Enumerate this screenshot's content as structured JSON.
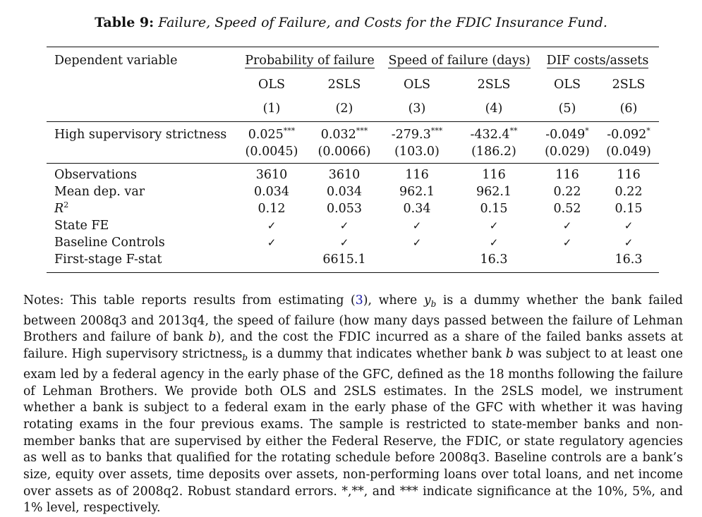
{
  "caption": {
    "label": "Table 9:",
    "text": "Failure, Speed of Failure, and Costs for the FDIC Insurance Fund."
  },
  "table": {
    "dep_var_label": "Dependent variable",
    "groups": [
      "Probability of failure",
      "Speed of failure (days)",
      "DIF costs/assets"
    ],
    "methods": [
      "OLS",
      "2SLS",
      "OLS",
      "2SLS",
      "OLS",
      "2SLS"
    ],
    "col_numbers": [
      "(1)",
      "(2)",
      "(3)",
      "(4)",
      "(5)",
      "(6)"
    ],
    "main_row": {
      "label": "High supervisory strictness",
      "coefs": [
        "0.025",
        "0.032",
        "-279.3",
        "-432.4",
        "-0.049",
        "-0.092"
      ],
      "stars": [
        "***",
        "***",
        "***",
        "**",
        "*",
        "*"
      ],
      "ses": [
        "(0.0045)",
        "(0.0066)",
        "(103.0)",
        "(186.2)",
        "(0.029)",
        "(0.049)"
      ]
    },
    "stats": [
      {
        "label": "Observations",
        "values": [
          "3610",
          "3610",
          "116",
          "116",
          "116",
          "116"
        ]
      },
      {
        "label": "Mean dep. var",
        "values": [
          "0.034",
          "0.034",
          "962.1",
          "962.1",
          "0.22",
          "0.22"
        ]
      },
      {
        "label": "R",
        "label_sup": "2",
        "values": [
          "0.12",
          "0.053",
          "0.34",
          "0.15",
          "0.52",
          "0.15"
        ]
      },
      {
        "label": "State FE",
        "values": [
          "✓",
          "✓",
          "✓",
          "✓",
          "✓",
          "✓"
        ]
      },
      {
        "label": "Baseline Controls",
        "values": [
          "✓",
          "✓",
          "✓",
          "✓",
          "✓",
          "✓"
        ]
      },
      {
        "label": "First-stage F-stat",
        "values": [
          "",
          "6615.1",
          "",
          "16.3",
          "",
          "16.3"
        ]
      }
    ]
  },
  "notes": {
    "p1": "Notes: This table reports results from estimating (",
    "ref": "3",
    "p2": "), where ",
    "y": "y",
    "y_sub": "b",
    "p3": " is a dummy whether the bank failed between 2008q3 and 2013q4, the speed of failure (how many days passed between the failure of Lehman Brothers and failure of bank ",
    "b1": "b",
    "p4": "), and the cost the FDIC incurred as a share of the failed banks assets at failure. High supervisory strictness",
    "hs_sub": "b",
    "p5": " is a dummy that indicates whether bank ",
    "b2": "b",
    "p6": " was subject to at least one exam led by a federal agency in the early phase of the GFC, defined as the 18 months following the failure of Lehman Brothers. We provide both OLS and 2SLS estimates. In the 2SLS model, we instrument whether a bank is subject to a federal exam in the early phase of the GFC with whether it was having rotating exams in the four previous exams. The sample is restricted to state-member banks and non-member banks that are supervised by either the Federal Reserve, the FDIC, or state regulatory agencies as well as to banks that qualified for the rotating schedule before 2008q3. Baseline controls are a bank’s size, equity over assets, time deposits over assets, non-performing loans over total loans, and net income over assets as of 2008q2. Robust standard errors. *,**, and *** indicate significance at the 10%, 5%, and 1% level, respectively."
  }
}
